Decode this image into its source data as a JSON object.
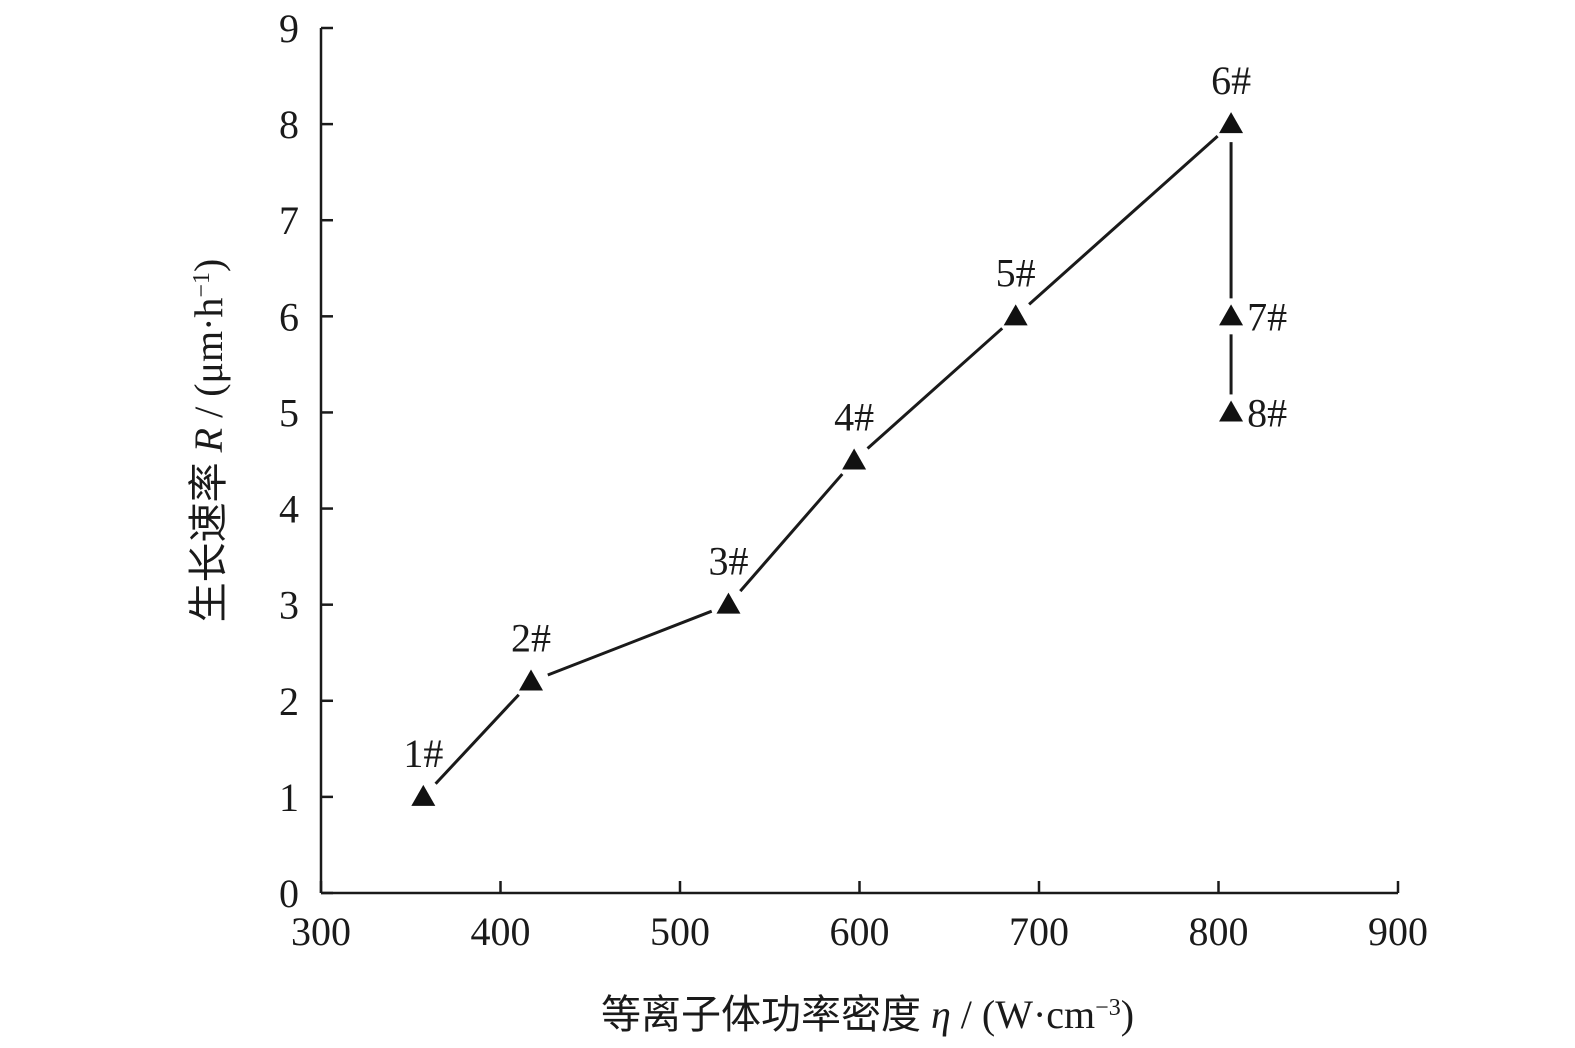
{
  "chart_data": {
    "type": "line",
    "xlabel": {
      "prefix": "等离子体功率密度 ",
      "symbol": "η",
      "unit": " / (W·cm",
      "exp": "−3",
      "close": ")"
    },
    "ylabel": {
      "prefix": "生长速率 ",
      "symbol": "R",
      "unit": " / (μm·h",
      "exp": "−1",
      "close": ")"
    },
    "xlim": [
      300,
      900
    ],
    "ylim": [
      0,
      9
    ],
    "xticks": [
      "300",
      "400",
      "500",
      "600",
      "700",
      "800",
      "900"
    ],
    "yticks": [
      "0",
      "1",
      "2",
      "3",
      "4",
      "5",
      "6",
      "7",
      "8",
      "9"
    ],
    "grid": false,
    "marker": "triangle",
    "points": [
      {
        "label": "1#",
        "x": 357,
        "y": 1.0
      },
      {
        "label": "2#",
        "x": 417,
        "y": 2.2
      },
      {
        "label": "3#",
        "x": 527,
        "y": 3.0
      },
      {
        "label": "4#",
        "x": 597,
        "y": 4.5
      },
      {
        "label": "5#",
        "x": 687,
        "y": 6.0
      },
      {
        "label": "6#",
        "x": 807,
        "y": 8.0
      },
      {
        "label": "7#",
        "x": 807,
        "y": 6.0
      },
      {
        "label": "8#",
        "x": 807,
        "y": 5.0
      }
    ]
  }
}
